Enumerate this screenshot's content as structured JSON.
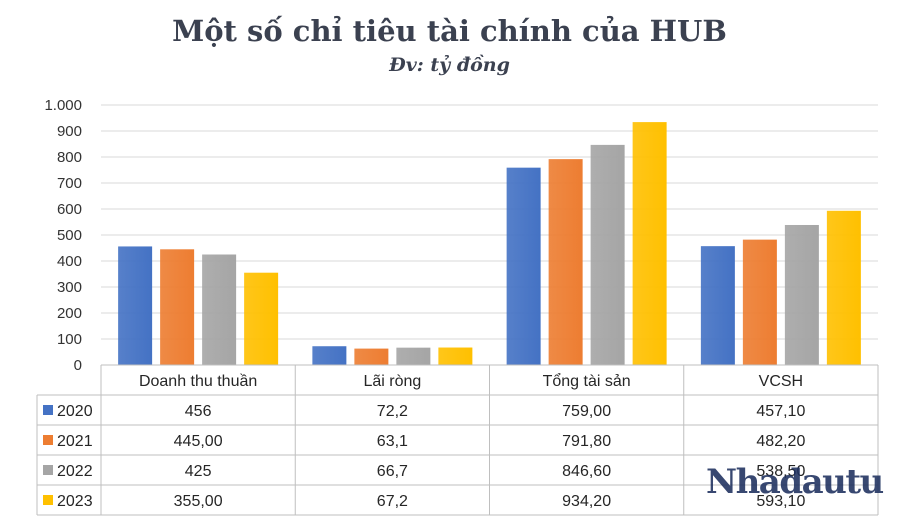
{
  "title": "Một số chỉ tiêu tài chính của HUB",
  "subtitle": "Đv: tỷ đồng",
  "watermark": "Nhadautu",
  "chart_data": {
    "type": "bar",
    "categories": [
      "Doanh thu thuần",
      "Lãi ròng",
      "Tổng tài sản",
      "VCSH"
    ],
    "ylim": [
      0,
      1000
    ],
    "yticks": [
      0,
      100,
      200,
      300,
      400,
      500,
      600,
      700,
      800,
      900,
      1000
    ],
    "ytick_labels": [
      "0",
      "100",
      "200",
      "300",
      "400",
      "500",
      "600",
      "700",
      "800",
      "900",
      "1.000"
    ],
    "grid": true,
    "legend": "data-table",
    "series": [
      {
        "name": "2020",
        "color": "#4472c4",
        "values": [
          456,
          72.2,
          759.0,
          457.1
        ],
        "labels": [
          "456",
          "72,2",
          "759,00",
          "457,10"
        ]
      },
      {
        "name": "2021",
        "color": "#ed7d31",
        "values": [
          445.0,
          63.1,
          791.8,
          482.2
        ],
        "labels": [
          "445,00",
          "63,1",
          "791,80",
          "482,20"
        ]
      },
      {
        "name": "2022",
        "color": "#a5a5a5",
        "values": [
          425,
          66.7,
          846.6,
          538.5
        ],
        "labels": [
          "425",
          "66,7",
          "846,60",
          "538,50"
        ]
      },
      {
        "name": "2023",
        "color": "#ffc000",
        "values": [
          355.0,
          67.2,
          934.2,
          593.1
        ],
        "labels": [
          "355,00",
          "67,2",
          "934,20",
          "593,10"
        ]
      }
    ]
  }
}
